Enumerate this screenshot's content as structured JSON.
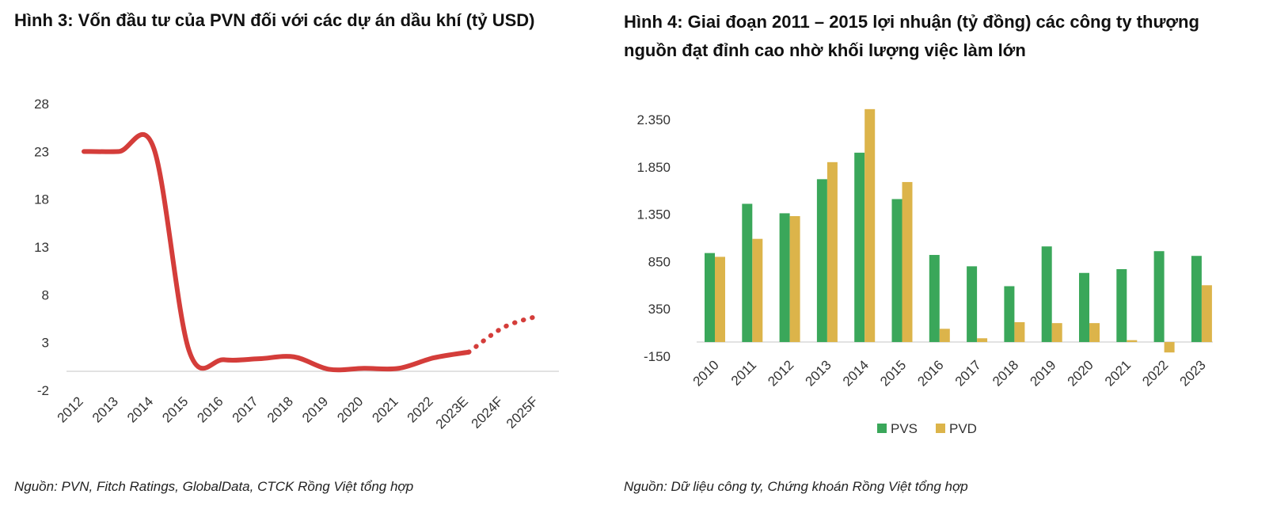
{
  "figure3": {
    "title": "Hình 3: Vốn đầu tư của PVN đối với các dự án dầu khí (tỷ USD)",
    "source": "Nguồn: PVN, Fitch Ratings, GlobalData, CTCK Rồng Việt tổng hợp",
    "chart_data": {
      "type": "line",
      "title": "Hình 3: Vốn đầu tư của PVN đối với các dự án dầu khí (tỷ USD)",
      "categories": [
        "2012",
        "2013",
        "2014",
        "2015",
        "2016",
        "2017",
        "2018",
        "2019",
        "2020",
        "2021",
        "2022",
        "2023E",
        "2024F",
        "2025F"
      ],
      "values": [
        23,
        23,
        23.3,
        2.2,
        1.2,
        1.3,
        1.5,
        0.2,
        0.3,
        0.3,
        1.4,
        2,
        4.6,
        5.8
      ],
      "actual_until_index": 11,
      "forecast_style": "dotted",
      "yticks": [
        28,
        23,
        18,
        13,
        8,
        3,
        -2
      ],
      "ylim": [
        -2,
        28
      ],
      "color": "#d43d3a",
      "grid": false
    }
  },
  "figure4": {
    "title": "Hình 4: Giai đoạn 2011 – 2015 lợi nhuận (tỷ đồng) các công ty thượng nguồn đạt đỉnh cao nhờ khối lượng việc làm lớn",
    "source": "Nguồn: Dữ liệu công ty, Chứng khoán Rồng Việt tổng hợp",
    "chart_data": {
      "type": "bar",
      "title": "Hình 4: Giai đoạn 2011 – 2015 lợi nhuận (tỷ đồng) các công ty thượng nguồn đạt đỉnh cao nhờ khối lượng việc làm lớn",
      "categories": [
        "2010",
        "2011",
        "2012",
        "2013",
        "2014",
        "2015",
        "2016",
        "2017",
        "2018",
        "2019",
        "2020",
        "2021",
        "2022",
        "2023"
      ],
      "series": [
        {
          "name": "PVS",
          "color": "#3aa75a",
          "values": [
            940,
            1460,
            1360,
            1720,
            2000,
            1510,
            920,
            800,
            590,
            1010,
            730,
            770,
            960,
            910
          ]
        },
        {
          "name": "PVD",
          "color": "#dcb44a",
          "values": [
            900,
            1090,
            1330,
            1900,
            2460,
            1690,
            140,
            40,
            210,
            200,
            200,
            20,
            -110,
            600
          ]
        }
      ],
      "yticks": [
        2350,
        1850,
        1350,
        850,
        350,
        -150
      ],
      "ytick_labels": [
        "2.350",
        "1.850",
        "1.350",
        "850",
        "350",
        "-150"
      ],
      "ylim": [
        -150,
        2350
      ],
      "legend_position": "bottom",
      "grid": false
    }
  }
}
